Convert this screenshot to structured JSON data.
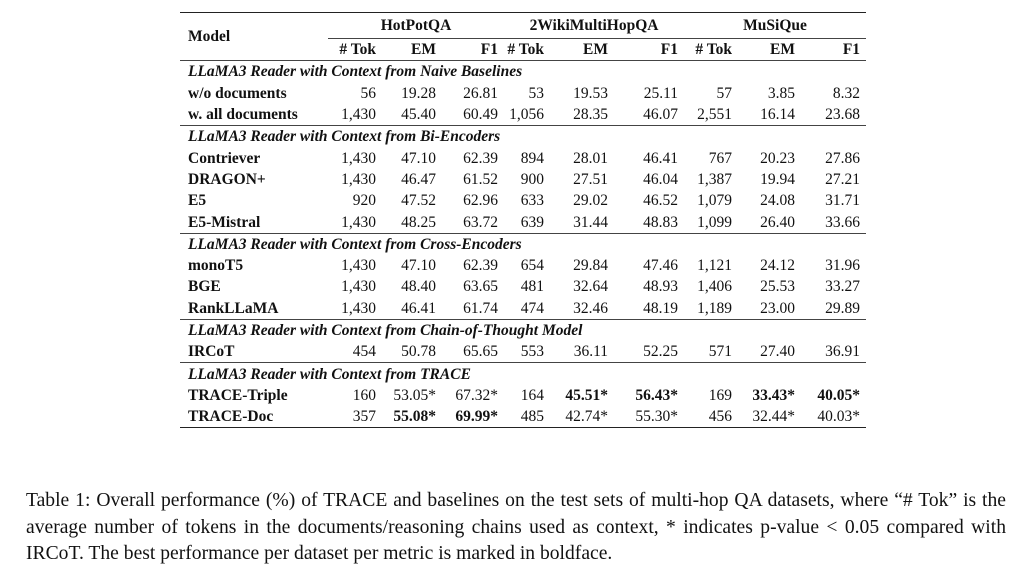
{
  "header": {
    "model": "Model",
    "groups": [
      "HotPotQA",
      "2WikiMultiHopQA",
      "MuSiQue"
    ],
    "metrics": [
      "# Tok",
      "EM",
      "F1"
    ]
  },
  "sections": [
    {
      "title": "LLaMA3 Reader with Context from Naive Baselines",
      "rows": [
        {
          "model": "w/o documents",
          "values": [
            "56",
            "19.28",
            "26.81",
            "53",
            "19.53",
            "25.11",
            "57",
            "3.85",
            "8.32"
          ]
        },
        {
          "model": "w. all documents",
          "values": [
            "1,430",
            "45.40",
            "60.49",
            "1,056",
            "28.35",
            "46.07",
            "2,551",
            "16.14",
            "23.68"
          ]
        }
      ]
    },
    {
      "title": "LLaMA3 Reader with Context from Bi-Encoders",
      "rows": [
        {
          "model": "Contriever",
          "values": [
            "1,430",
            "47.10",
            "62.39",
            "894",
            "28.01",
            "46.41",
            "767",
            "20.23",
            "27.86"
          ]
        },
        {
          "model": "DRAGON+",
          "values": [
            "1,430",
            "46.47",
            "61.52",
            "900",
            "27.51",
            "46.04",
            "1,387",
            "19.94",
            "27.21"
          ]
        },
        {
          "model": "E5",
          "values": [
            "920",
            "47.52",
            "62.96",
            "633",
            "29.02",
            "46.52",
            "1,079",
            "24.08",
            "31.71"
          ]
        },
        {
          "model": "E5-Mistral",
          "values": [
            "1,430",
            "48.25",
            "63.72",
            "639",
            "31.44",
            "48.83",
            "1,099",
            "26.40",
            "33.66"
          ]
        }
      ]
    },
    {
      "title": "LLaMA3 Reader with Context from Cross-Encoders",
      "rows": [
        {
          "model": "monoT5",
          "values": [
            "1,430",
            "47.10",
            "62.39",
            "654",
            "29.84",
            "47.46",
            "1,121",
            "24.12",
            "31.96"
          ]
        },
        {
          "model": "BGE",
          "values": [
            "1,430",
            "48.40",
            "63.65",
            "481",
            "32.64",
            "48.93",
            "1,406",
            "25.53",
            "33.27"
          ]
        },
        {
          "model": "RankLLaMA",
          "values": [
            "1,430",
            "46.41",
            "61.74",
            "474",
            "32.46",
            "48.19",
            "1,189",
            "23.00",
            "29.89"
          ]
        }
      ]
    },
    {
      "title": "LLaMA3 Reader with Context from Chain-of-Thought Model",
      "rows": [
        {
          "model": "IRCoT",
          "values": [
            "454",
            "50.78",
            "65.65",
            "553",
            "36.11",
            "52.25",
            "571",
            "27.40",
            "36.91"
          ]
        }
      ]
    },
    {
      "title": "LLaMA3 Reader with Context from TRACE",
      "rows": [
        {
          "model": "TRACE-Triple",
          "values": [
            "160",
            "53.05*",
            "67.32*",
            "164",
            "45.51*",
            "56.43*",
            "169",
            "33.43*",
            "40.05*"
          ],
          "bold": [
            false,
            false,
            false,
            false,
            true,
            true,
            false,
            true,
            true
          ]
        },
        {
          "model": "TRACE-Doc",
          "values": [
            "357",
            "55.08*",
            "69.99*",
            "485",
            "42.74*",
            "55.30*",
            "456",
            "32.44*",
            "40.03*"
          ],
          "bold": [
            false,
            true,
            true,
            false,
            false,
            false,
            false,
            false,
            false
          ]
        }
      ]
    }
  ],
  "caption": "Table 1: Overall performance (%) of TRACE and baselines on the test sets of multi-hop QA datasets, where “# Tok” is the average number of tokens in the documents/reasoning chains used as context, * indicates p-value < 0.05 compared with IRCoT. The best performance per dataset per metric is marked in boldface."
}
